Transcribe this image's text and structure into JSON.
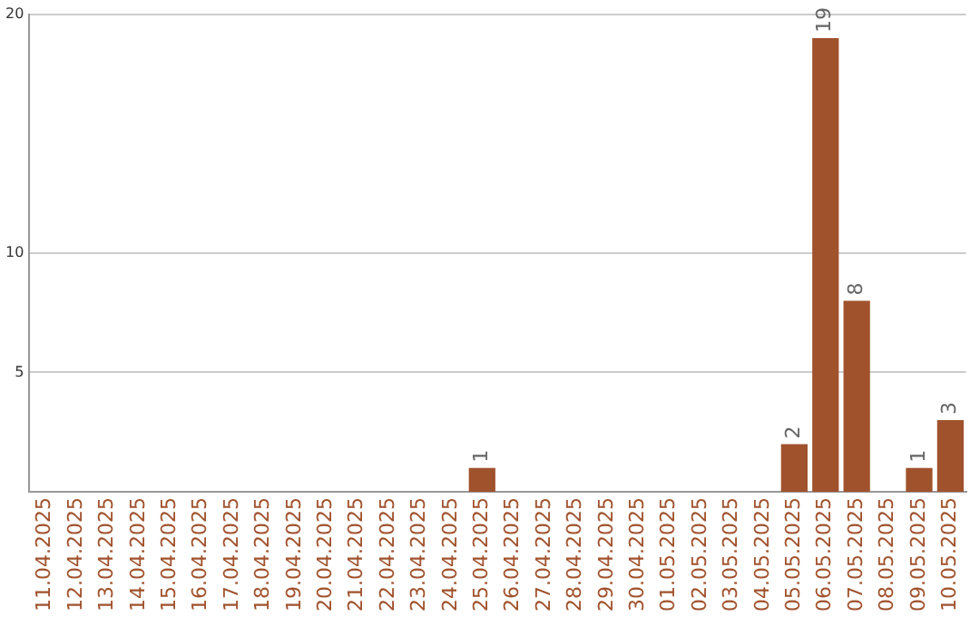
{
  "chart_data": {
    "type": "bar",
    "categories": [
      "11.04.2025",
      "12.04.2025",
      "13.04.2025",
      "14.04.2025",
      "15.04.2025",
      "16.04.2025",
      "17.04.2025",
      "18.04.2025",
      "19.04.2025",
      "20.04.2025",
      "21.04.2025",
      "22.04.2025",
      "23.04.2025",
      "24.04.2025",
      "25.04.2025",
      "26.04.2025",
      "27.04.2025",
      "28.04.2025",
      "29.04.2025",
      "30.04.2025",
      "01.05.2025",
      "02.05.2025",
      "03.05.2025",
      "04.05.2025",
      "05.05.2025",
      "06.05.2025",
      "07.05.2025",
      "08.05.2025",
      "09.05.2025",
      "10.05.2025"
    ],
    "values": [
      0,
      0,
      0,
      0,
      0,
      0,
      0,
      0,
      0,
      0,
      0,
      0,
      0,
      0,
      1,
      0,
      0,
      0,
      0,
      0,
      0,
      0,
      0,
      0,
      2,
      19,
      8,
      0,
      1,
      3
    ],
    "value_labels": [
      null,
      null,
      null,
      null,
      null,
      null,
      null,
      null,
      null,
      null,
      null,
      null,
      null,
      null,
      "1",
      null,
      null,
      null,
      null,
      null,
      null,
      null,
      null,
      null,
      "2",
      "19",
      "8",
      null,
      "1",
      "3"
    ],
    "color": "#a0522d",
    "ylim": [
      0,
      20
    ],
    "yticks": [
      5,
      10,
      20
    ],
    "grid": "y",
    "legend": false
  }
}
